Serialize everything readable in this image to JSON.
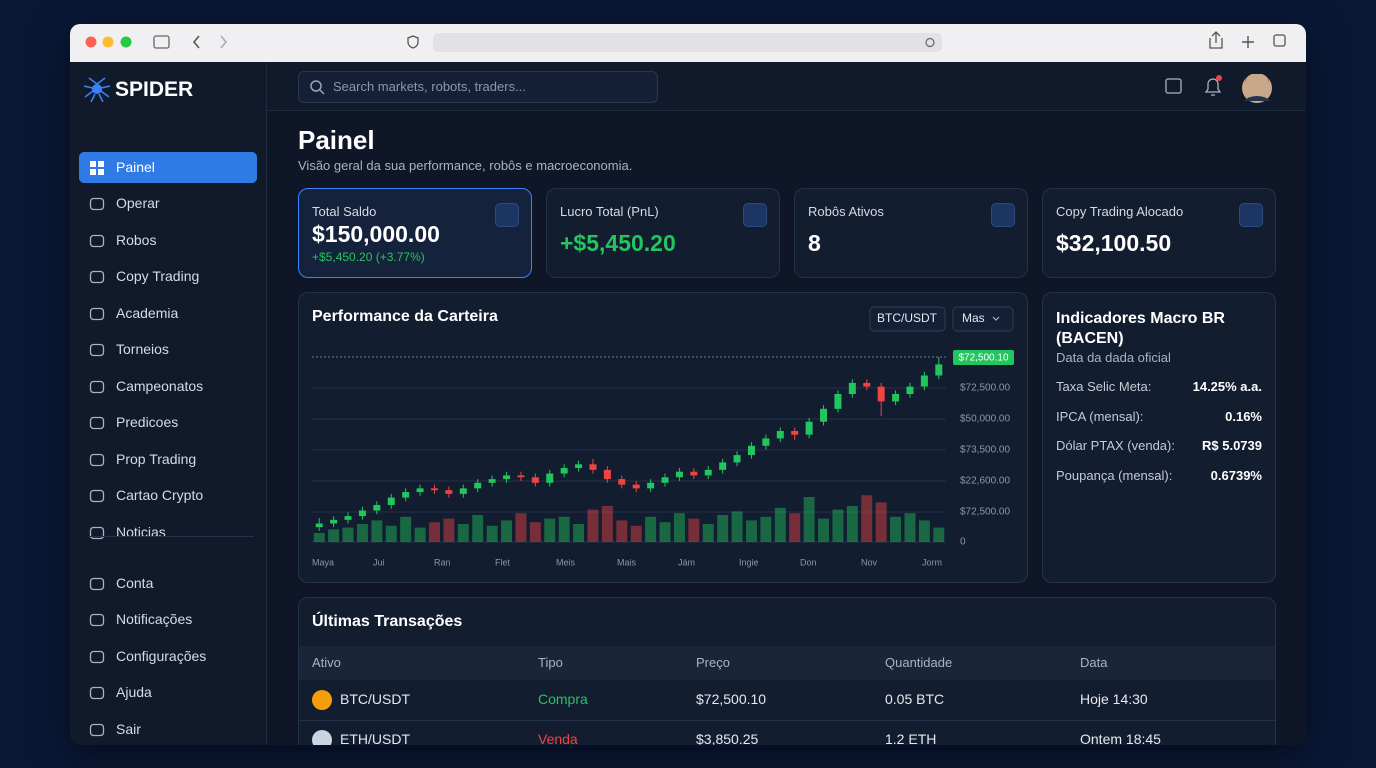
{
  "brand": "SPIDER",
  "search_placeholder": "Search markets, robots, traders...",
  "nav": [
    "Painel",
    "Operar",
    "Robos",
    "Copy Trading",
    "Academia",
    "Torneios",
    "Campeonatos",
    "Predicoes",
    "Prop Trading",
    "Cartao Crypto",
    "Noticias"
  ],
  "nav_account": [
    "Conta",
    "Notificações",
    "Configurações",
    "Ajuda",
    "Sair"
  ],
  "page": {
    "title": "Painel",
    "subtitle": "Visão geral da sua performance, robôs e macroeconomia."
  },
  "cards": [
    {
      "label": "Total Saldo",
      "value": "$150,000.00",
      "change": "+$5,450.20 (+3.77%)"
    },
    {
      "label": "Lucro Total (PnL)",
      "value": "+$5,450.20"
    },
    {
      "label": "Robôs Ativos",
      "value": "8"
    },
    {
      "label": "Copy Trading Alocado",
      "value": "$32,100.50"
    }
  ],
  "chart_data": {
    "type": "candlestick",
    "title": "Performance da Carteira",
    "pair": "BTC/USDT",
    "period": "Mas",
    "price_tag": "$72,500.10",
    "y_labels": [
      "$72,500.00",
      "$50,000.00",
      "$73,500.00",
      "$22,600.00",
      "$72,500.00",
      "0"
    ],
    "x_labels": [
      "Maya",
      "Jui",
      "Ran",
      "Flet",
      "Meis",
      "Mais",
      "Jám",
      "Ingie",
      "Don",
      "Nov",
      "Jorm"
    ],
    "ylim": [
      0,
      100
    ],
    "up_color": "#22c55e",
    "down_color": "#ef4444",
    "candles": [
      [
        8,
        13,
        6,
        10
      ],
      [
        10,
        14,
        8,
        12
      ],
      [
        12,
        16,
        10,
        14
      ],
      [
        14,
        19,
        12,
        17
      ],
      [
        17,
        22,
        15,
        20
      ],
      [
        20,
        26,
        18,
        24
      ],
      [
        24,
        29,
        22,
        27
      ],
      [
        27,
        31,
        25,
        29
      ],
      [
        29,
        31,
        26,
        28
      ],
      [
        28,
        30,
        24,
        26
      ],
      [
        26,
        31,
        24,
        29
      ],
      [
        29,
        34,
        27,
        32
      ],
      [
        32,
        36,
        30,
        34
      ],
      [
        34,
        38,
        32,
        36
      ],
      [
        36,
        38,
        33,
        35
      ],
      [
        35,
        37,
        30,
        32
      ],
      [
        32,
        39,
        30,
        37
      ],
      [
        37,
        42,
        35,
        40
      ],
      [
        40,
        44,
        38,
        42
      ],
      [
        42,
        45,
        37,
        39
      ],
      [
        39,
        41,
        32,
        34
      ],
      [
        34,
        36,
        29,
        31
      ],
      [
        31,
        33,
        27,
        29
      ],
      [
        29,
        34,
        27,
        32
      ],
      [
        32,
        37,
        30,
        35
      ],
      [
        35,
        40,
        33,
        38
      ],
      [
        38,
        40,
        34,
        36
      ],
      [
        36,
        41,
        34,
        39
      ],
      [
        39,
        45,
        37,
        43
      ],
      [
        43,
        49,
        41,
        47
      ],
      [
        47,
        54,
        45,
        52
      ],
      [
        52,
        58,
        50,
        56
      ],
      [
        56,
        62,
        54,
        60
      ],
      [
        60,
        62,
        55,
        58
      ],
      [
        58,
        67,
        56,
        65
      ],
      [
        65,
        74,
        63,
        72
      ],
      [
        72,
        82,
        70,
        80
      ],
      [
        80,
        88,
        78,
        86
      ],
      [
        86,
        88,
        82,
        84
      ],
      [
        84,
        86,
        68,
        76
      ],
      [
        76,
        82,
        74,
        80
      ],
      [
        80,
        86,
        78,
        84
      ],
      [
        84,
        92,
        82,
        90
      ],
      [
        90,
        100,
        88,
        96
      ]
    ],
    "volumes": [
      5,
      7,
      8,
      10,
      12,
      9,
      14,
      8,
      11,
      13,
      10,
      15,
      9,
      12,
      16,
      11,
      13,
      14,
      10,
      18,
      20,
      12,
      9,
      14,
      11,
      16,
      13,
      10,
      15,
      17,
      12,
      14,
      19,
      16,
      25,
      13,
      18,
      20,
      26,
      22,
      14,
      16,
      12,
      8
    ]
  },
  "macro": {
    "title": "Indicadores Macro BR (BACEN)",
    "subtitle": "Data da dada oficial",
    "rows": [
      [
        "Taxa Selic Meta:",
        "14.25% a.a."
      ],
      [
        "IPCA (mensal):",
        "0.16%"
      ],
      [
        "Dólar PTAX (venda):",
        "R$ 5.0739"
      ],
      [
        "Poupança (mensal):",
        "0.6739%"
      ]
    ]
  },
  "transactions": {
    "title": "Últimas Transações",
    "columns": [
      "Ativo",
      "Tipo",
      "Preço",
      "Quantidade",
      "Data"
    ],
    "rows": [
      {
        "asset": "BTC/USDT",
        "type": "Compra",
        "type_color": "#22c55e",
        "icon_color": "#f59e0b",
        "price": "$72,500.10",
        "qty": "0.05 BTC",
        "date": "Hoje 14:30"
      },
      {
        "asset": "ETH/USDT",
        "type": "Venda",
        "type_color": "#ef4444",
        "icon_color": "#cbd5e1",
        "price": "$3,850.25",
        "qty": "1.2 ETH",
        "date": "Ontem 18:45"
      }
    ]
  }
}
